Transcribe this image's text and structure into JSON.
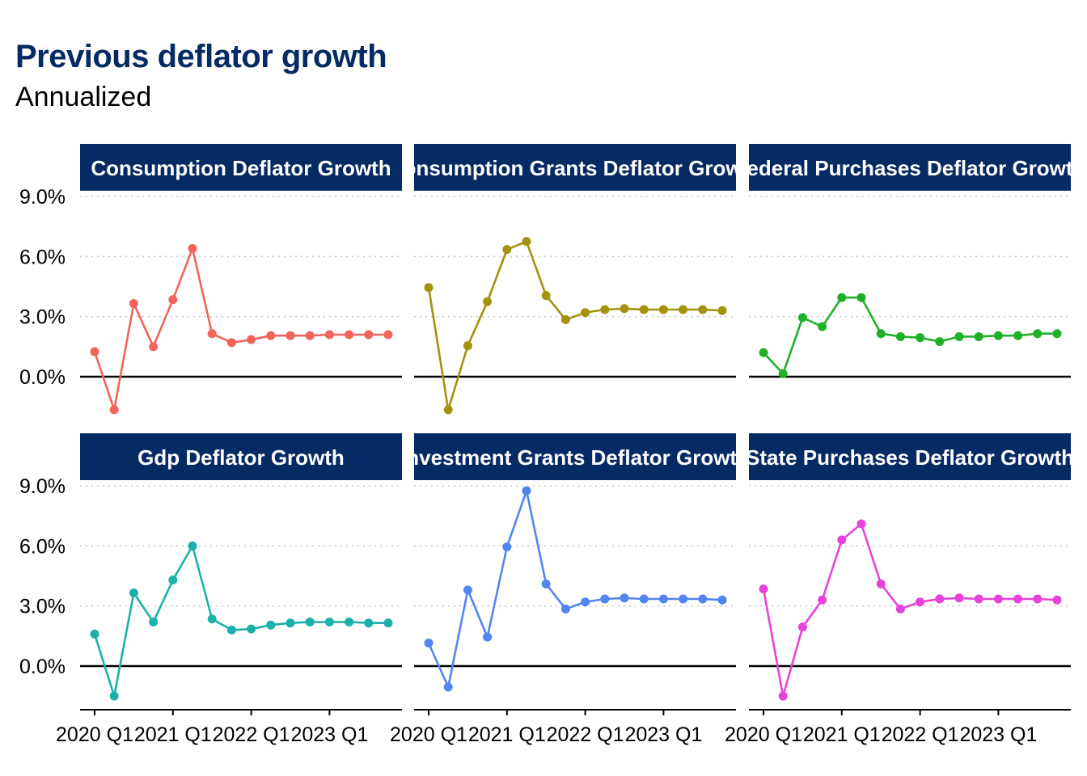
{
  "title": "Previous deflator growth",
  "subtitle": "Annualized",
  "colors": {
    "strip": "#062a63",
    "grid": "#c8c8c8",
    "zero_line": "#000000"
  },
  "chart_data": {
    "type": "line",
    "facet_layout": "3 columns x 2 rows, shared axes",
    "x": [
      "2020 Q1",
      "2020 Q2",
      "2020 Q3",
      "2020 Q4",
      "2021 Q1",
      "2021 Q2",
      "2021 Q3",
      "2021 Q4",
      "2022 Q1",
      "2022 Q2",
      "2022 Q3",
      "2022 Q4",
      "2023 Q1",
      "2023 Q2",
      "2023 Q3",
      "2023 Q4"
    ],
    "x_tick_labels": [
      "2020 Q1",
      "2021 Q1",
      "2022 Q1",
      "2023 Q1"
    ],
    "y_ticks": [
      0,
      3,
      6,
      9
    ],
    "y_tick_labels": [
      "0.0%",
      "3.0%",
      "6.0%",
      "9.0%"
    ],
    "ylim": [
      -2,
      9.3
    ],
    "grid": "horizontal dotted",
    "series": [
      {
        "name": "Consumption Deflator Growth",
        "color": "#f0645c",
        "values": [
          1.25,
          -1.65,
          3.65,
          1.5,
          3.85,
          6.4,
          2.15,
          1.7,
          1.85,
          2.05,
          2.05,
          2.05,
          2.1,
          2.1,
          2.1,
          2.1
        ]
      },
      {
        "name": "Consumption Grants Deflator Growth",
        "color": "#a3920c",
        "values": [
          4.45,
          -1.65,
          1.55,
          3.75,
          6.35,
          6.75,
          4.05,
          2.85,
          3.2,
          3.35,
          3.4,
          3.35,
          3.35,
          3.35,
          3.35,
          3.3
        ]
      },
      {
        "name": "Federal Purchases Deflator Growth",
        "color": "#1fb02a",
        "values": [
          1.2,
          0.15,
          2.95,
          2.5,
          3.95,
          3.95,
          2.15,
          2.0,
          1.95,
          1.75,
          2.0,
          2.0,
          2.05,
          2.05,
          2.15,
          2.15
        ]
      },
      {
        "name": "Gdp Deflator Growth",
        "color": "#1bb1aa",
        "values": [
          1.6,
          -1.5,
          3.65,
          2.2,
          4.3,
          6.0,
          2.35,
          1.8,
          1.85,
          2.05,
          2.15,
          2.2,
          2.2,
          2.2,
          2.15,
          2.15
        ]
      },
      {
        "name": "Investment Grants Deflator Growth",
        "color": "#5285f0",
        "values": [
          1.15,
          -1.05,
          3.8,
          1.45,
          5.95,
          8.75,
          4.1,
          2.85,
          3.2,
          3.35,
          3.4,
          3.35,
          3.35,
          3.35,
          3.35,
          3.3
        ]
      },
      {
        "name": "State Purchases Deflator Growth",
        "color": "#e742d9",
        "values": [
          3.85,
          -1.5,
          1.95,
          3.3,
          6.3,
          7.1,
          4.1,
          2.85,
          3.2,
          3.35,
          3.4,
          3.35,
          3.35,
          3.35,
          3.35,
          3.3
        ]
      }
    ]
  }
}
